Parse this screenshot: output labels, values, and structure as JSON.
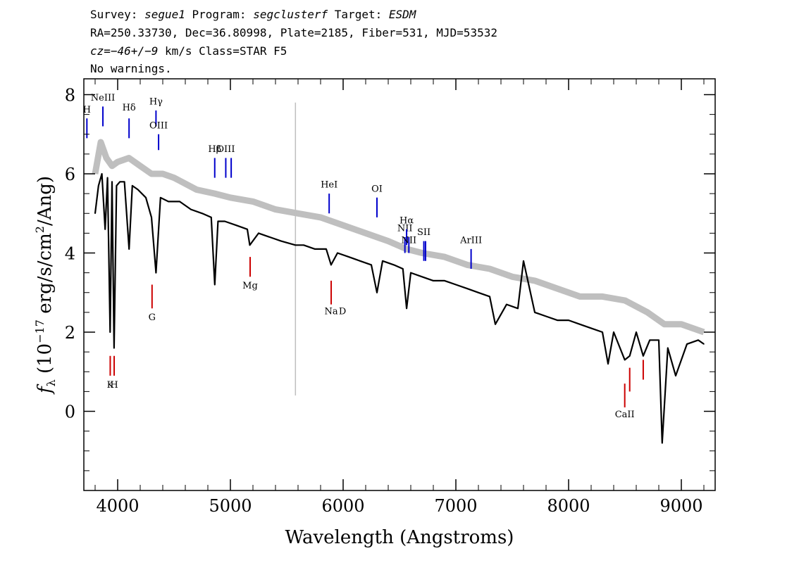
{
  "header": {
    "line1": {
      "survey_label": "Survey: ",
      "survey": "segue1",
      "program_label": " Program: ",
      "program": "segclusterf",
      "target_label": " Target: ",
      "target": "ESDM"
    },
    "line2": "RA=250.33730, Dec=36.80998, Plate=2185, Fiber=531, MJD=53532",
    "line3": {
      "cz_label": "cz=",
      "cz": "−46+/−9",
      "rest": " km/s Class=STAR F5"
    },
    "line4": "No warnings."
  },
  "chart_data": {
    "type": "line",
    "xlabel": "Wavelength (Angstroms)",
    "ylabel_prefix": "f",
    "ylabel_sub": "λ",
    "ylabel_mid": " (10",
    "ylabel_exp": "−17",
    "ylabel_unit": " erg/s/cm",
    "ylabel_exp2": "2",
    "ylabel_end": "/Ang)",
    "xlim": [
      3700,
      9300
    ],
    "ylim": [
      -2.0,
      8.4
    ],
    "x_ticks": [
      4000,
      5000,
      6000,
      7000,
      8000,
      9000
    ],
    "x_tick_labels": [
      "4000",
      "5000",
      "6000",
      "7000",
      "8000",
      "9000"
    ],
    "y_ticks": [
      0,
      2,
      4,
      6,
      8
    ],
    "y_tick_labels": [
      "0",
      "2",
      "4",
      "6",
      "8"
    ],
    "series": [
      {
        "role": "error-envelope",
        "color": "#bfbfbf",
        "x": [
          3800,
          3850,
          3900,
          3950,
          4000,
          4100,
          4200,
          4300,
          4400,
          4500,
          4700,
          4861,
          5000,
          5200,
          5400,
          5600,
          5800,
          6000,
          6200,
          6400,
          6563,
          6700,
          6900,
          7100,
          7300,
          7500,
          7700,
          7900,
          8100,
          8300,
          8500,
          8700,
          8850,
          9000,
          9200
        ],
        "y": [
          6.0,
          6.8,
          6.4,
          6.2,
          6.3,
          6.4,
          6.2,
          6.0,
          6.0,
          5.9,
          5.6,
          5.5,
          5.4,
          5.3,
          5.1,
          5.0,
          4.9,
          4.7,
          4.5,
          4.3,
          4.1,
          4.0,
          3.9,
          3.7,
          3.6,
          3.4,
          3.3,
          3.1,
          2.9,
          2.9,
          2.8,
          2.5,
          2.2,
          2.2,
          2.0
        ]
      },
      {
        "role": "flux",
        "color": "#000000",
        "x": [
          3800,
          3830,
          3860,
          3889,
          3910,
          3933,
          3950,
          3968,
          3990,
          4020,
          4060,
          4101,
          4130,
          4180,
          4250,
          4300,
          4340,
          4380,
          4450,
          4550,
          4650,
          4750,
          4830,
          4861,
          4890,
          4950,
          5050,
          5150,
          5172,
          5250,
          5350,
          5450,
          5577,
          5650,
          5750,
          5850,
          5893,
          5950,
          6050,
          6150,
          6250,
          6300,
          6350,
          6450,
          6530,
          6563,
          6600,
          6700,
          6800,
          6900,
          7000,
          7100,
          7200,
          7300,
          7350,
          7450,
          7550,
          7600,
          7700,
          7800,
          7900,
          8000,
          8100,
          8200,
          8300,
          8350,
          8400,
          8498,
          8542,
          8600,
          8662,
          8720,
          8800,
          8830,
          8880,
          8950,
          9050,
          9150,
          9200
        ],
        "y": [
          5.0,
          5.7,
          6.0,
          4.6,
          5.9,
          2.0,
          5.8,
          1.6,
          5.7,
          5.8,
          5.8,
          4.1,
          5.7,
          5.6,
          5.4,
          4.9,
          3.5,
          5.4,
          5.3,
          5.3,
          5.1,
          5.0,
          4.9,
          3.2,
          4.8,
          4.8,
          4.7,
          4.6,
          4.2,
          4.5,
          4.4,
          4.3,
          4.2,
          4.2,
          4.1,
          4.1,
          3.7,
          4.0,
          3.9,
          3.8,
          3.7,
          3.0,
          3.8,
          3.7,
          3.6,
          2.6,
          3.5,
          3.4,
          3.3,
          3.3,
          3.2,
          3.1,
          3.0,
          2.9,
          2.2,
          2.7,
          2.6,
          3.8,
          2.5,
          2.4,
          2.3,
          2.3,
          2.2,
          2.1,
          2.0,
          1.2,
          2.0,
          1.3,
          1.4,
          2.0,
          1.4,
          1.8,
          1.8,
          -0.8,
          1.6,
          0.9,
          1.7,
          1.8,
          1.7
        ]
      }
    ],
    "emission_lines": [
      {
        "label": "H",
        "x": 3727,
        "y0": 6.9,
        "y1": 7.4,
        "label_y": 7.55,
        "color": "#0000cc"
      },
      {
        "label": "NeIII",
        "x": 3869,
        "y0": 7.2,
        "y1": 7.7,
        "label_y": 7.85,
        "color": "#0000cc"
      },
      {
        "label": "Hδ",
        "x": 4101,
        "y0": 6.9,
        "y1": 7.4,
        "label_y": 7.6,
        "color": "#0000cc"
      },
      {
        "label": "Hγ",
        "x": 4340,
        "y0": 7.2,
        "y1": 7.6,
        "label_y": 7.75,
        "color": "#0000cc"
      },
      {
        "label": "OIII",
        "x": 4363,
        "y0": 6.6,
        "y1": 7.0,
        "label_y": 7.15,
        "color": "#0000cc"
      },
      {
        "label": "Hβ",
        "x": 4861,
        "y0": 5.9,
        "y1": 6.4,
        "label_y": 6.55,
        "color": "#0000cc"
      },
      {
        "label": "OIII",
        "x": 4959,
        "y0": 5.9,
        "y1": 6.4,
        "label_y": 6.55,
        "color": "#0000cc"
      },
      {
        "label": "",
        "x": 5007,
        "y0": 5.9,
        "y1": 6.4,
        "label_y": 6.55,
        "color": "#0000cc"
      },
      {
        "label": "HeI",
        "x": 5876,
        "y0": 5.0,
        "y1": 5.5,
        "label_y": 5.65,
        "color": "#0000cc"
      },
      {
        "label": "OI",
        "x": 6300,
        "y0": 4.9,
        "y1": 5.4,
        "label_y": 5.55,
        "color": "#0000cc"
      },
      {
        "label": "NII",
        "x": 6548,
        "y0": 4.0,
        "y1": 4.4,
        "label_y": 4.55,
        "color": "#0000cc"
      },
      {
        "label": "Hα",
        "x": 6563,
        "y0": 4.2,
        "y1": 4.6,
        "label_y": 4.75,
        "color": "#0000cc"
      },
      {
        "label": "NII",
        "x": 6583,
        "y0": 4.0,
        "y1": 4.4,
        "label_y": 4.25,
        "color": "#0000cc"
      },
      {
        "label": "SII",
        "x": 6716,
        "y0": 3.8,
        "y1": 4.3,
        "label_y": 4.45,
        "color": "#0000cc"
      },
      {
        "label": "",
        "x": 6731,
        "y0": 3.8,
        "y1": 4.3,
        "label_y": 4.45,
        "color": "#0000cc"
      },
      {
        "label": "ArIII",
        "x": 7135,
        "y0": 3.6,
        "y1": 4.1,
        "label_y": 4.25,
        "color": "#0000cc"
      }
    ],
    "absorption_lines": [
      {
        "label": "K",
        "x": 3934,
        "y0": 0.9,
        "y1": 1.4,
        "label_y": 0.6,
        "color": "#cc0000"
      },
      {
        "label": "H",
        "x": 3969,
        "y0": 0.9,
        "y1": 1.4,
        "label_y": 0.6,
        "color": "#cc0000"
      },
      {
        "label": "G",
        "x": 4305,
        "y0": 2.6,
        "y1": 3.2,
        "label_y": 2.3,
        "color": "#cc0000"
      },
      {
        "label": "Mg",
        "x": 5175,
        "y0": 3.4,
        "y1": 3.9,
        "label_y": 3.1,
        "color": "#cc0000"
      },
      {
        "label": "Na",
        "x": 5894,
        "y0": 2.7,
        "y1": 3.3,
        "label_y": 2.45,
        "color": "#cc0000"
      },
      {
        "label": "D",
        "x": 5994,
        "y0": 2.7,
        "y1": 2.7,
        "label_y": 2.45,
        "color": "#cc0000"
      },
      {
        "label": "CaII",
        "x": 8498,
        "y0": 0.1,
        "y1": 0.7,
        "label_y": -0.15,
        "color": "#cc0000"
      },
      {
        "label": "",
        "x": 8542,
        "y0": 0.5,
        "y1": 1.1,
        "label_y": -0.15,
        "color": "#cc0000"
      },
      {
        "label": "",
        "x": 8662,
        "y0": 0.8,
        "y1": 1.3,
        "label_y": -0.15,
        "color": "#cc0000"
      }
    ],
    "sky_line": {
      "x": 5577,
      "y0": 0.4,
      "y1": 7.8,
      "color": "#bfbfbf"
    },
    "grid": false,
    "legend": "none"
  }
}
